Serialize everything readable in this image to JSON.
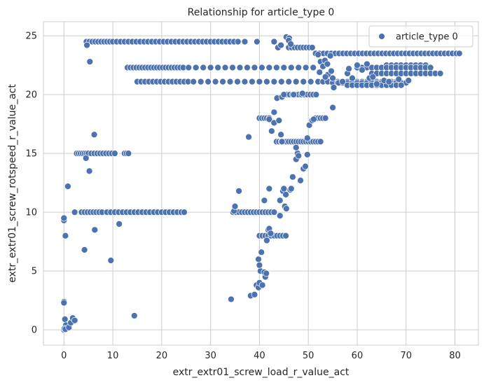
{
  "chart_data": {
    "type": "scatter",
    "title": "Relationship for article_type 0",
    "xlabel": "extr_extr01_screw_load_r_value_act",
    "ylabel": "extr_extr01_screw_rotspeed_r_value_act",
    "xlim": [
      -4.2,
      84.8
    ],
    "ylim": [
      -1.3,
      26.2
    ],
    "x_ticks": [
      0,
      10,
      20,
      30,
      40,
      50,
      60,
      70,
      80
    ],
    "y_ticks": [
      0,
      5,
      10,
      15,
      20,
      25
    ],
    "grid": true,
    "legend_position": "top-right",
    "series": [
      {
        "name": "article_type 0",
        "color": "#4c72b0",
        "bands": [
          {
            "y": 24.5,
            "x": [
              4.6,
              5.2,
              5.8,
              6.4,
              7.0,
              7.6,
              8.2,
              8.8,
              9.4,
              10.0,
              10.8,
              11.6,
              12.4,
              13.2,
              14.0,
              14.8,
              15.6,
              16.4,
              17.2,
              18.0,
              18.8,
              19.6,
              20.4,
              21.2,
              22.0,
              22.8,
              23.6,
              24.4,
              25.2,
              26.0,
              26.8,
              27.6,
              28.4,
              29.2,
              30.0,
              30.8,
              31.6,
              32.4,
              33.2,
              34.0,
              34.8,
              35.6,
              37.0,
              39.5,
              43.0
            ]
          },
          {
            "y": 22.3,
            "x": [
              13.0,
              13.6,
              14.2,
              14.8,
              15.4,
              16.0,
              16.6,
              17.2,
              17.8,
              18.4,
              19.0,
              19.6,
              20.2,
              20.8,
              21.4,
              22.0,
              22.6,
              23.2,
              23.8,
              24.4,
              25.5,
              27.0,
              28.5,
              30.0,
              31.5,
              33.0,
              34.5,
              36.0,
              37.5,
              39.0,
              40.5,
              42.0,
              43.5,
              45.0,
              46.5,
              48.0,
              49.5,
              51.0
            ]
          },
          {
            "y": 21.1,
            "x": [
              15.0,
              15.8,
              16.6,
              17.4,
              18.2,
              19.0,
              19.8,
              20.6,
              21.4,
              22.2,
              23.0,
              23.8,
              24.6,
              25.4,
              26.5,
              28.0,
              29.5,
              31.0,
              32.5,
              34.0,
              35.5,
              37.0,
              38.5,
              40.0,
              41.5,
              43.0,
              44.5,
              46.0,
              47.5,
              49.0,
              50.5,
              52.0,
              53.0,
              54.0,
              55.0,
              56.0,
              57.0,
              58.0,
              59.0,
              60.0,
              61.0,
              62.0,
              63.0,
              64.0,
              65.0,
              66.0,
              67.0,
              68.0
            ]
          },
          {
            "y": 15.0,
            "x": [
              2.6,
              3.0,
              3.4,
              3.8,
              4.2,
              4.6,
              5.0,
              5.6,
              6.2,
              6.8,
              7.4,
              8.0,
              8.6,
              9.2,
              9.8,
              10.4,
              12.4,
              12.8,
              13.2
            ]
          },
          {
            "y": 10.0,
            "x": [
              2.2,
              3.6,
              4.2,
              4.8,
              5.4,
              6.0,
              6.6,
              7.2,
              7.8,
              8.8,
              9.6,
              10.4,
              11.2,
              12.0,
              12.8,
              13.6,
              14.4,
              15.2,
              16.0,
              16.8,
              17.6,
              18.4,
              19.2,
              20.0,
              20.8,
              21.6,
              22.4,
              23.2,
              24.0,
              24.6,
              34.6,
              35.2,
              35.8,
              36.4,
              37.0,
              37.6,
              38.2,
              38.8,
              39.4,
              40.0,
              40.6,
              41.2,
              41.8,
              42.4,
              43.0
            ]
          },
          {
            "y": 24.0,
            "x": [
              46.0,
              46.6,
              47.2,
              47.8,
              48.4,
              49.0,
              49.6,
              50.2,
              50.8
            ]
          },
          {
            "y": 23.5,
            "x": [
              51.5,
              52.3,
              53.1,
              53.9,
              54.7,
              55.5,
              56.3,
              57.1,
              57.9,
              58.7,
              59.5,
              60.3,
              61.1,
              61.9,
              62.7,
              63.5,
              64.3,
              65.1,
              65.9,
              66.7,
              67.5,
              68.3,
              69.1,
              69.9,
              70.7,
              71.5,
              72.3,
              73.1,
              73.9,
              74.7,
              75.5,
              76.3,
              77.1,
              77.9,
              78.7,
              79.5,
              80.3,
              80.9
            ]
          },
          {
            "y": 22.5,
            "x": [
              66.0,
              67.0,
              68.0,
              69.0,
              70.0,
              71.0,
              72.0,
              73.0,
              74.0
            ]
          },
          {
            "y": 22.3,
            "x": [
              60.0,
              61.0,
              62.0,
              63.0,
              64.0,
              65.0,
              66.0,
              67.0,
              68.0,
              69.0,
              70.0,
              71.0,
              72.0,
              73.0,
              74.0,
              75.0
            ]
          },
          {
            "y": 21.8,
            "x": [
              63.0,
              64.0,
              65.0,
              66.0,
              67.0,
              68.0,
              69.0,
              70.0,
              71.0,
              72.0,
              73.0,
              74.0,
              75.0,
              76.0,
              77.0
            ]
          },
          {
            "y": 21.0,
            "x": [
              55.0,
              56.0,
              57.0,
              58.0,
              59.0,
              60.0,
              61.0,
              62.0,
              63.0,
              64.0,
              65.0,
              66.0,
              67.0,
              68.0,
              69.0,
              70.0
            ]
          },
          {
            "y": 20.8,
            "x": [
              58.0,
              59.0,
              60.0,
              61.0,
              62.0,
              63.0,
              64.0,
              65.0,
              66.0,
              67.0,
              68.0,
              69.0
            ]
          },
          {
            "y": 20.0,
            "x": [
              45.0,
              45.6,
              46.2,
              46.8,
              47.4,
              48.0,
              48.6,
              49.2,
              49.8,
              50.4,
              51.0,
              51.6
            ]
          },
          {
            "y": 18.0,
            "x": [
              40.0,
              40.5,
              41.0,
              41.5,
              42.0,
              51.5,
              52.0,
              52.5,
              53.0,
              53.5
            ]
          },
          {
            "y": 16.0,
            "x": [
              43.5,
              44.0,
              44.5,
              45.0,
              45.5,
              46.0,
              46.5,
              47.0,
              47.5,
              48.0,
              48.5,
              49.0,
              49.5,
              50.0,
              50.5,
              51.0,
              51.5,
              52.0,
              52.5
            ]
          },
          {
            "y": 8.0,
            "x": [
              40.0,
              40.6,
              41.2,
              41.8,
              42.4,
              43.0,
              43.6,
              44.2,
              44.8,
              45.4
            ]
          }
        ],
        "points": [
          [
            0.0,
            0.0
          ],
          [
            0.2,
            0.9
          ],
          [
            0.4,
            0.4
          ],
          [
            0.1,
            0.1
          ],
          [
            0.3,
            0.05
          ],
          [
            1.0,
            0.2
          ],
          [
            1.4,
            0.6
          ],
          [
            1.8,
            1.0
          ],
          [
            2.2,
            0.8
          ],
          [
            0.0,
            2.4
          ],
          [
            0.0,
            2.3
          ],
          [
            0.0,
            9.3
          ],
          [
            0.0,
            9.5
          ],
          [
            0.3,
            8.0
          ],
          [
            0.8,
            12.2
          ],
          [
            4.2,
            6.8
          ],
          [
            4.5,
            14.6
          ],
          [
            5.2,
            13.5
          ],
          [
            6.2,
            16.6
          ],
          [
            6.3,
            8.5
          ],
          [
            9.6,
            5.9
          ],
          [
            11.3,
            9.0
          ],
          [
            14.4,
            1.2
          ],
          [
            4.7,
            24.2
          ],
          [
            5.3,
            22.8
          ],
          [
            34.2,
            2.6
          ],
          [
            34.8,
            10.1
          ],
          [
            35.0,
            10.5
          ],
          [
            35.8,
            11.8
          ],
          [
            37.8,
            16.4
          ],
          [
            38.2,
            2.9
          ],
          [
            39.0,
            3.0
          ],
          [
            39.4,
            3.8
          ],
          [
            39.8,
            3.6
          ],
          [
            40.0,
            4.0
          ],
          [
            40.2,
            5.0
          ],
          [
            39.8,
            6.0
          ],
          [
            40.0,
            5.5
          ],
          [
            40.4,
            6.6
          ],
          [
            40.6,
            3.8
          ],
          [
            41.0,
            4.9
          ],
          [
            41.2,
            4.5
          ],
          [
            41.4,
            4.8
          ],
          [
            41.5,
            7.6
          ],
          [
            41.8,
            8.5
          ],
          [
            42.0,
            8.6
          ],
          [
            42.3,
            8.2
          ],
          [
            41.0,
            11.0
          ],
          [
            42.0,
            12.0
          ],
          [
            42.5,
            16.9
          ],
          [
            42.0,
            17.9
          ],
          [
            43.0,
            18.5
          ],
          [
            43.0,
            17.6
          ],
          [
            44.2,
            9.7
          ],
          [
            44.2,
            11.0
          ],
          [
            44.8,
            11.8
          ],
          [
            45.0,
            12.0
          ],
          [
            45.2,
            10.5
          ],
          [
            45.5,
            10.3
          ],
          [
            45.4,
            8.0
          ],
          [
            45.4,
            11.5
          ],
          [
            46.3,
            11.9
          ],
          [
            46.5,
            12.0
          ],
          [
            46.8,
            13.0
          ],
          [
            47.5,
            14.5
          ],
          [
            47.8,
            15.0
          ],
          [
            48.4,
            12.7
          ],
          [
            49.0,
            13.7
          ],
          [
            49.4,
            13.9
          ],
          [
            49.8,
            14.9
          ],
          [
            48.0,
            14.8
          ],
          [
            44.4,
            16.6
          ],
          [
            44.6,
            16.0
          ],
          [
            44.0,
            17.8
          ],
          [
            47.5,
            15.5
          ],
          [
            49.8,
            16.3
          ],
          [
            50.2,
            17.4
          ],
          [
            50.8,
            17.8
          ],
          [
            51.1,
            17.9
          ],
          [
            55.0,
            18.9
          ],
          [
            43.6,
            19.7
          ],
          [
            44.6,
            19.8
          ],
          [
            45.0,
            20.0
          ],
          [
            47.0,
            20.0
          ],
          [
            48.8,
            20.1
          ],
          [
            43.8,
            24.0
          ],
          [
            44.4,
            24.2
          ],
          [
            45.5,
            24.9
          ],
          [
            46.1,
            24.8
          ],
          [
            46.0,
            24.6
          ],
          [
            46.4,
            24.3
          ],
          [
            52.0,
            23.4
          ],
          [
            52.5,
            22.8
          ],
          [
            53.0,
            22.4
          ],
          [
            53.4,
            22.9
          ],
          [
            53.9,
            22.6
          ],
          [
            54.5,
            23.3
          ],
          [
            54.0,
            21.7
          ],
          [
            52.3,
            21.9
          ],
          [
            53.5,
            21.5
          ],
          [
            54.7,
            22.0
          ],
          [
            55.0,
            21.4
          ],
          [
            55.2,
            20.6
          ],
          [
            56.2,
            21.0
          ],
          [
            57.0,
            21.1
          ],
          [
            58.0,
            21.8
          ],
          [
            58.3,
            22.2
          ],
          [
            59.0,
            21.4
          ],
          [
            60.0,
            22.5
          ],
          [
            61.0,
            22.1
          ],
          [
            62.0,
            22.6
          ],
          [
            62.5,
            21.4
          ],
          [
            63.2,
            21.5
          ],
          [
            64.0,
            20.9
          ],
          [
            65.5,
            21.2
          ],
          [
            66.5,
            21.1
          ],
          [
            68.5,
            21.3
          ],
          [
            70.5,
            21.2
          ]
        ]
      }
    ]
  }
}
